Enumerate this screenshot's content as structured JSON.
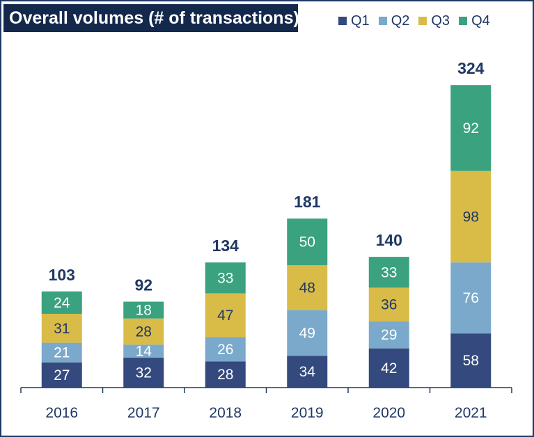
{
  "colors": {
    "Q1": "#34497d",
    "Q2": "#7aa9cb",
    "Q3": "#d9bb48",
    "Q4": "#3aa27e",
    "axis": "#1f3864",
    "title_bg": "#14284b"
  },
  "chart_data": {
    "type": "bar",
    "stacked": true,
    "title": "Overall volumes (# of transactions)",
    "categories": [
      "2016",
      "2017",
      "2018",
      "2019",
      "2020",
      "2021"
    ],
    "series": [
      {
        "name": "Q1",
        "values": [
          27,
          32,
          28,
          34,
          42,
          58
        ]
      },
      {
        "name": "Q2",
        "values": [
          21,
          14,
          26,
          49,
          29,
          76
        ]
      },
      {
        "name": "Q3",
        "values": [
          31,
          28,
          47,
          48,
          36,
          98
        ]
      },
      {
        "name": "Q4",
        "values": [
          24,
          18,
          33,
          50,
          33,
          92
        ]
      }
    ],
    "totals": [
      103,
      92,
      134,
      181,
      140,
      324
    ],
    "ylim": [
      0,
      330
    ],
    "legend_position": "top-right",
    "grid": false
  }
}
